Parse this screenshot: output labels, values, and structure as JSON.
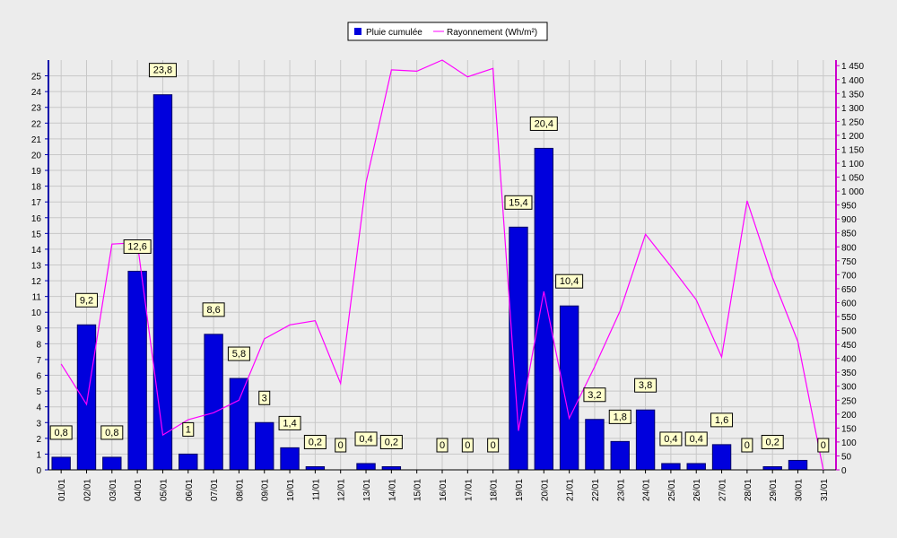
{
  "chart_data": {
    "type": "bar",
    "categories": [
      "01/01",
      "02/01",
      "03/01",
      "04/01",
      "05/01",
      "06/01",
      "07/01",
      "08/01",
      "09/01",
      "10/01",
      "11/01",
      "12/01",
      "13/01",
      "14/01",
      "15/01",
      "16/01",
      "17/01",
      "18/01",
      "19/01",
      "20/01",
      "21/01",
      "22/01",
      "23/01",
      "24/01",
      "25/01",
      "26/01",
      "27/01",
      "28/01",
      "29/01",
      "30/01",
      "31/01"
    ],
    "series": [
      {
        "name": "Pluie cumulée",
        "type": "bar",
        "axis": "left",
        "color": "#0000dd",
        "values": [
          0.8,
          9.2,
          0.8,
          12.6,
          23.8,
          1,
          8.6,
          5.8,
          3,
          1.4,
          0.2,
          0,
          0.4,
          0.2,
          0,
          0,
          0,
          0,
          15.4,
          20.4,
          10.4,
          3.2,
          1.8,
          3.8,
          0.4,
          0.4,
          1.6,
          0,
          0.2,
          0.6,
          0
        ],
        "labels": [
          "0,8",
          "9,2",
          "0,8",
          "12,6",
          "23,8",
          "1",
          "8,6",
          "5,8",
          "3",
          "1,4",
          "0,2",
          "0",
          "0,4",
          "0,2",
          "",
          "0",
          "0",
          "0",
          "15,4",
          "20,4",
          "10,4",
          "3,2",
          "1,8",
          "3,8",
          "0,4",
          "0,4",
          "1,6",
          "0",
          "0,2",
          "",
          "0"
        ]
      },
      {
        "name": "Rayonnement (Wh/m²)",
        "type": "line",
        "axis": "right",
        "color": "#ff00ff",
        "values": [
          380,
          235,
          810,
          815,
          125,
          180,
          205,
          250,
          470,
          520,
          535,
          310,
          1030,
          1435,
          1430,
          1470,
          1410,
          1440,
          140,
          640,
          185,
          370,
          570,
          845,
          730,
          610,
          405,
          965,
          690,
          460,
          0
        ]
      }
    ],
    "xlabel": "",
    "ylabel": "",
    "ylim": [
      0,
      26
    ],
    "y2lim": [
      0,
      1470
    ],
    "yticks": [
      "0",
      "1",
      "2",
      "3",
      "4",
      "5",
      "6",
      "7",
      "8",
      "9",
      "10",
      "11",
      "12",
      "13",
      "14",
      "15",
      "16",
      "17",
      "18",
      "19",
      "20",
      "21",
      "22",
      "23",
      "24",
      "25"
    ],
    "y2ticks": [
      "0",
      "50",
      "100",
      "150",
      "200",
      "250",
      "300",
      "350",
      "400",
      "450",
      "500",
      "550",
      "600",
      "650",
      "700",
      "750",
      "800",
      "850",
      "900",
      "950",
      "1 000",
      "1 050",
      "1 100",
      "1 150",
      "1 200",
      "1 250",
      "1 300",
      "1 350",
      "1 400",
      "1 450"
    ],
    "grid": true,
    "legend": "top-center"
  }
}
